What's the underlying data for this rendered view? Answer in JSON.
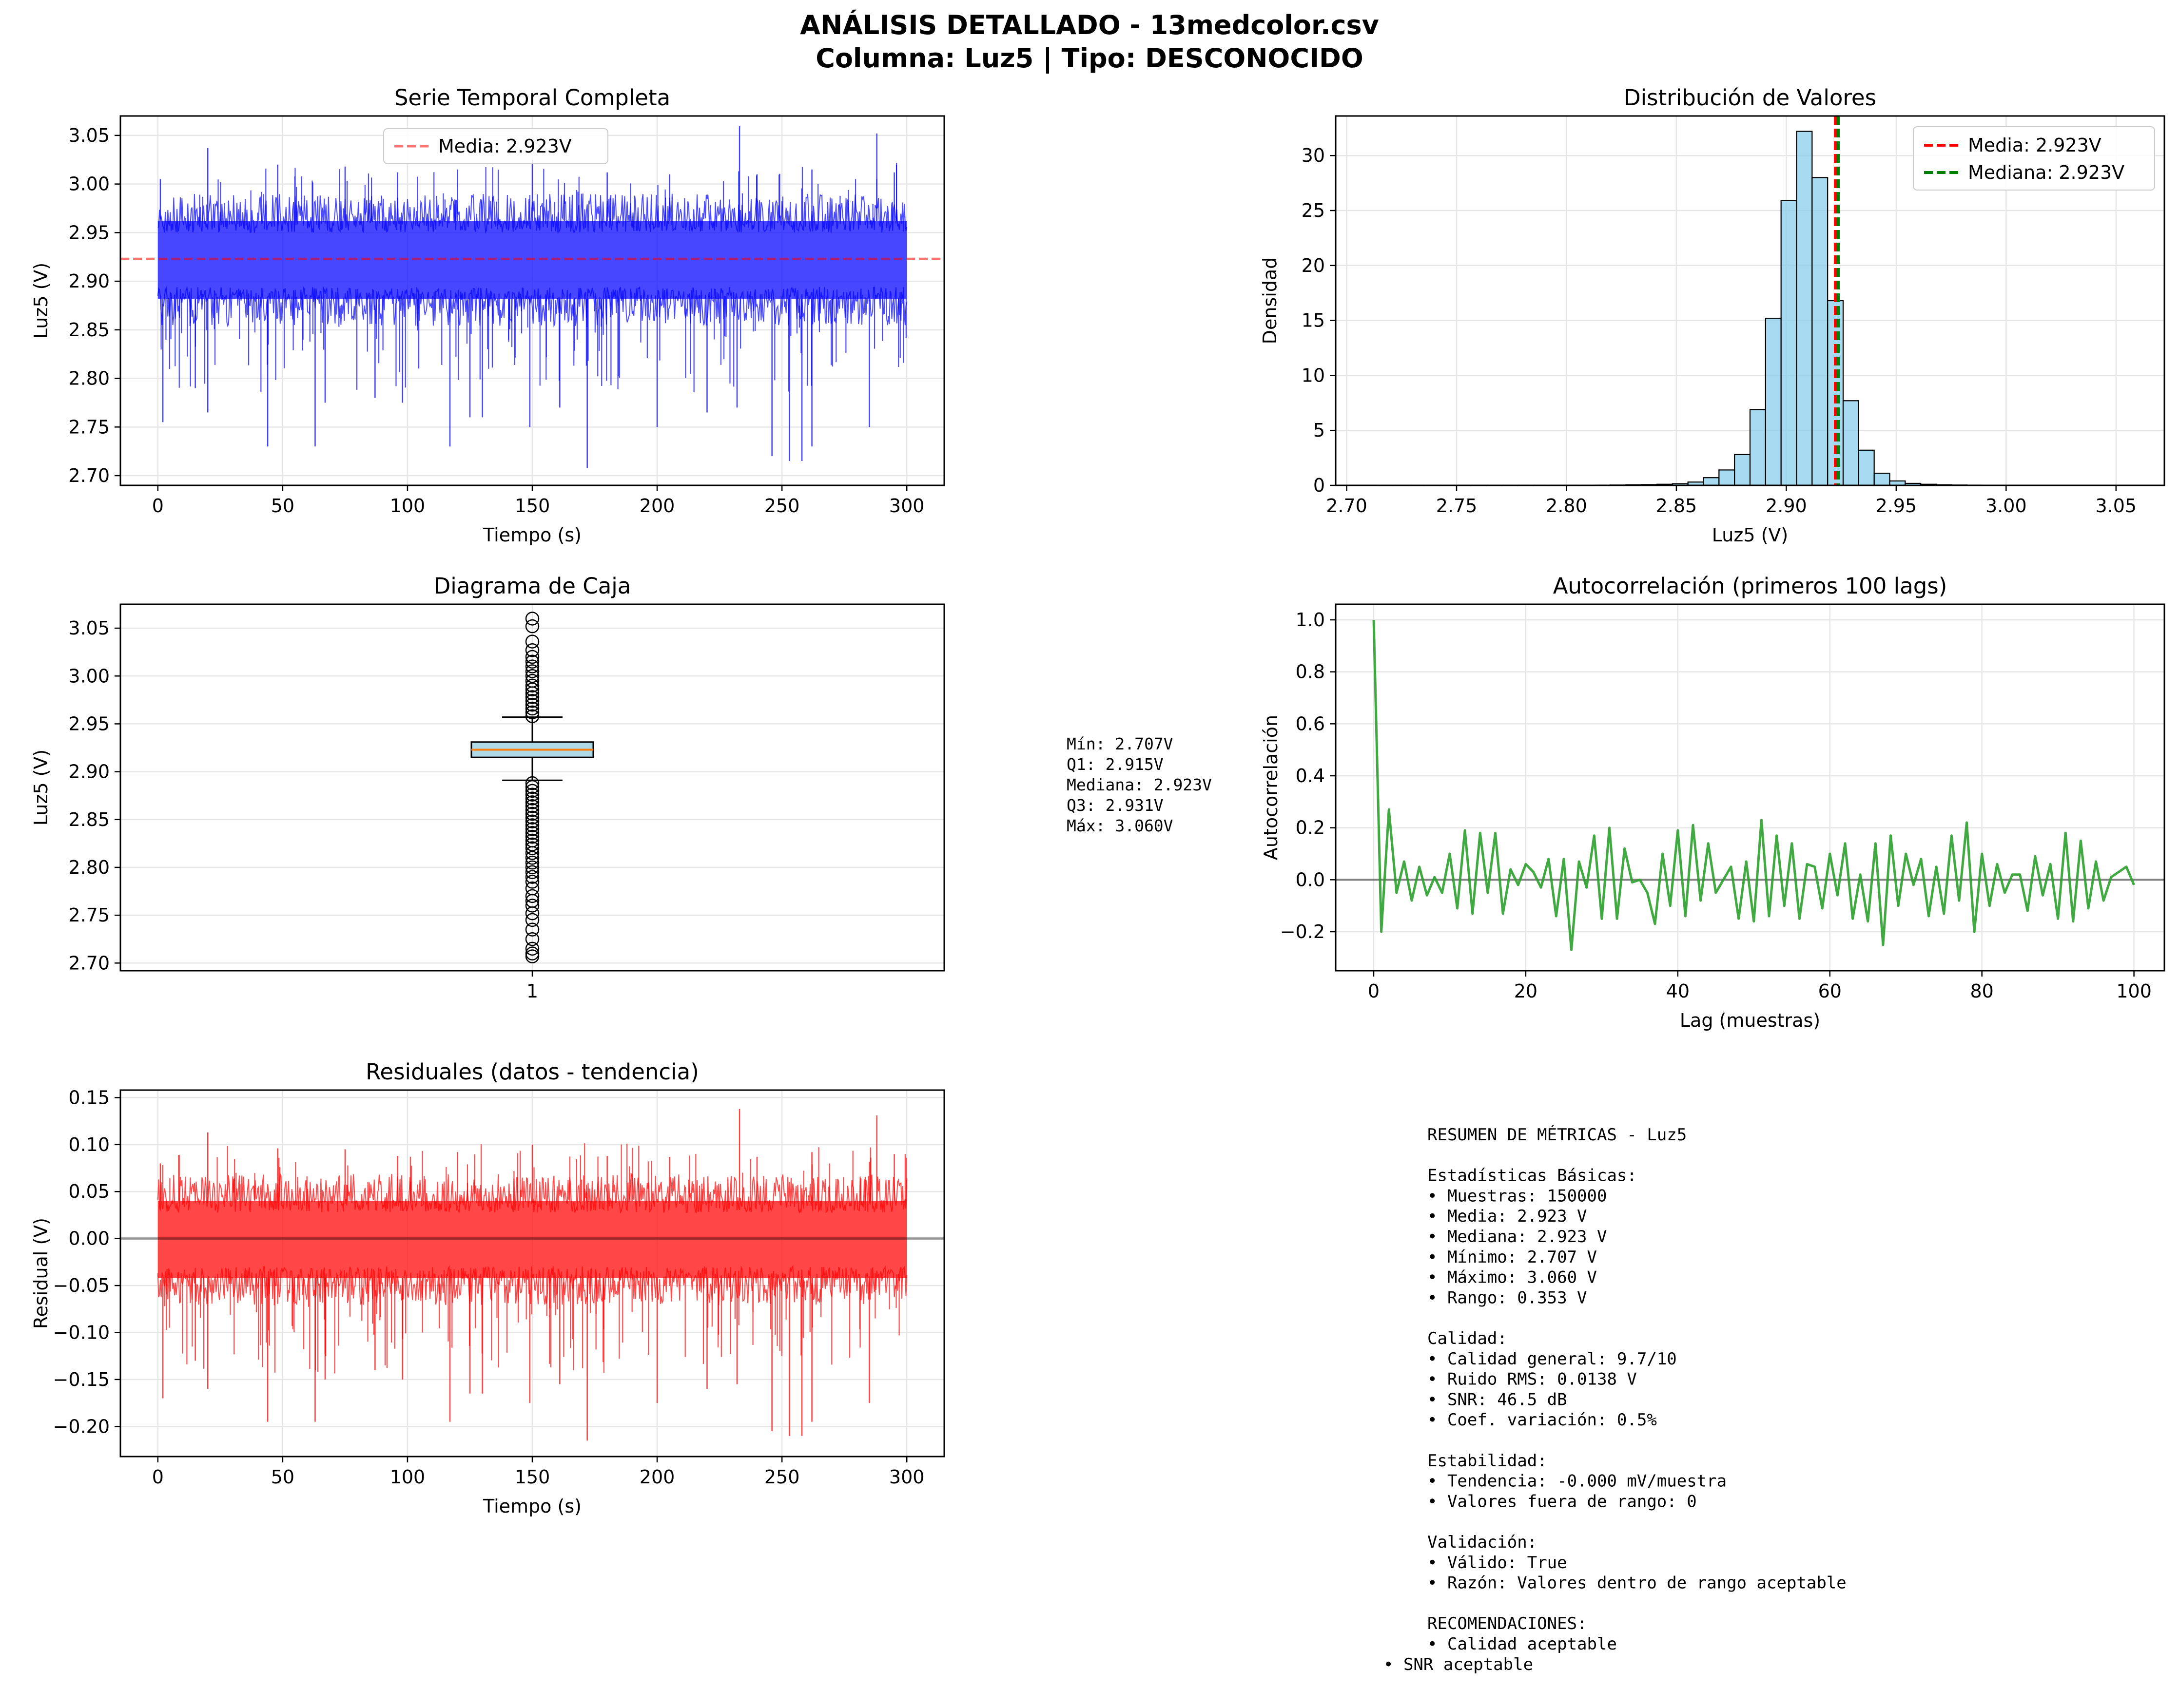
{
  "figure": {
    "title_line1": "ANÁLISIS DETALLADO - 13medcolor.csv",
    "title_line2": "Columna: Luz5 | Tipo: DESCONOCIDO"
  },
  "colors": {
    "series_blue": "#0000ff",
    "series_red": "#ff0000",
    "acf_green": "#2ca02c",
    "hist_fill": "#87ceeb",
    "median_line": "#ff7f0e",
    "mean_line": "#ff0000",
    "median_vline": "#008000",
    "grid": "#e6e6e6"
  },
  "chart_data": [
    {
      "id": "series",
      "type": "line",
      "title": "Serie Temporal Completa",
      "xlabel": "Tiempo (s)",
      "ylabel": "Luz5 (V)",
      "xlim": [
        -15,
        315
      ],
      "ylim": [
        2.69,
        3.07
      ],
      "xticks": [
        0,
        50,
        100,
        150,
        200,
        250,
        300
      ],
      "yticks": [
        2.7,
        2.75,
        2.8,
        2.85,
        2.9,
        2.95,
        3.0,
        3.05
      ],
      "ytick_labels": [
        "2.70",
        "2.75",
        "2.80",
        "2.85",
        "2.90",
        "2.95",
        "3.00",
        "3.05"
      ],
      "band": {
        "low": 2.882,
        "high": 2.962
      },
      "x_range": [
        0,
        300
      ],
      "mean": 2.923,
      "legend": {
        "position": "top-center",
        "entries": [
          "Media: 2.923V"
        ]
      },
      "spikes_up": [
        [
          1,
          3.005
        ],
        [
          20,
          3.037
        ],
        [
          48,
          3.02
        ],
        [
          75,
          3.018
        ],
        [
          96,
          3.012
        ],
        [
          120,
          3.015
        ],
        [
          150,
          3.025
        ],
        [
          180,
          3.012
        ],
        [
          205,
          3.01
        ],
        [
          233,
          3.06
        ],
        [
          240,
          3.01
        ],
        [
          262,
          3.015
        ],
        [
          288,
          3.052
        ],
        [
          295,
          3.012
        ]
      ],
      "spikes_down": [
        [
          2,
          2.755
        ],
        [
          15,
          2.79
        ],
        [
          20,
          2.765
        ],
        [
          44,
          2.73
        ],
        [
          63,
          2.73
        ],
        [
          67,
          2.775
        ],
        [
          87,
          2.78
        ],
        [
          98,
          2.775
        ],
        [
          117,
          2.73
        ],
        [
          125,
          2.76
        ],
        [
          130,
          2.76
        ],
        [
          149,
          2.75
        ],
        [
          161,
          2.77
        ],
        [
          172,
          2.708
        ],
        [
          200,
          2.75
        ],
        [
          220,
          2.765
        ],
        [
          232,
          2.77
        ],
        [
          246,
          2.72
        ],
        [
          253,
          2.715
        ],
        [
          258,
          2.715
        ],
        [
          262,
          2.73
        ],
        [
          285,
          2.75
        ]
      ],
      "grid": true
    },
    {
      "id": "hist",
      "type": "bar",
      "title": "Distribución de Valores",
      "xlabel": "Luz5 (V)",
      "ylabel": "Densidad",
      "xlim": [
        2.695,
        3.072
      ],
      "ylim": [
        0,
        33.6
      ],
      "xticks": [
        2.7,
        2.75,
        2.8,
        2.85,
        2.9,
        2.95,
        3.0,
        3.05
      ],
      "xtick_labels": [
        "2.70",
        "2.75",
        "2.80",
        "2.85",
        "2.90",
        "2.95",
        "3.00",
        "3.05"
      ],
      "yticks": [
        0,
        5,
        10,
        15,
        20,
        25,
        30
      ],
      "bin_start": 2.707,
      "bin_width": 0.00706,
      "values": [
        0.01,
        0,
        0,
        0,
        0,
        0,
        0,
        0,
        0,
        0,
        0,
        0,
        0,
        0,
        0,
        0.02,
        0.03,
        0.05,
        0.07,
        0.1,
        0.15,
        0.3,
        0.7,
        1.4,
        2.8,
        6.9,
        15.2,
        25.9,
        32.2,
        28.0,
        16.8,
        7.7,
        3.2,
        1.1,
        0.4,
        0.18,
        0.1,
        0.05,
        0.03,
        0.02,
        0.01,
        0.01,
        0.01,
        0.01,
        0.01,
        0.01,
        0.01,
        0.01,
        0.01,
        0.01
      ],
      "mean": 2.923,
      "median": 2.923,
      "legend": {
        "position": "top-right",
        "entries": [
          "Media: 2.923V",
          "Mediana: 2.923V"
        ]
      },
      "grid": true
    },
    {
      "id": "box",
      "type": "box",
      "title": "Diagrama de Caja",
      "ylabel": "Luz5 (V)",
      "ylim": [
        2.692,
        3.075
      ],
      "yticks": [
        2.7,
        2.75,
        2.8,
        2.85,
        2.9,
        2.95,
        3.0,
        3.05
      ],
      "ytick_labels": [
        "2.70",
        "2.75",
        "2.80",
        "2.85",
        "2.90",
        "2.95",
        "3.00",
        "3.05"
      ],
      "xtick_labels": [
        "1"
      ],
      "q1": 2.915,
      "median": 2.923,
      "q3": 2.931,
      "whisker_low": 2.891,
      "whisker_high": 2.957,
      "fliers_high": [
        2.958,
        2.962,
        2.966,
        2.97,
        2.974,
        2.978,
        2.982,
        2.986,
        2.99,
        2.995,
        3.0,
        3.005,
        3.01,
        3.015,
        3.02,
        3.027,
        3.036,
        3.052,
        3.06
      ],
      "fliers_low": [
        2.888,
        2.884,
        2.88,
        2.876,
        2.872,
        2.868,
        2.864,
        2.86,
        2.856,
        2.852,
        2.848,
        2.844,
        2.84,
        2.836,
        2.832,
        2.828,
        2.824,
        2.82,
        2.815,
        2.81,
        2.805,
        2.8,
        2.795,
        2.79,
        2.785,
        2.778,
        2.77,
        2.765,
        2.76,
        2.752,
        2.745,
        2.735,
        2.725,
        2.715,
        2.71,
        2.707
      ],
      "grid": true
    },
    {
      "id": "acf",
      "type": "line",
      "title": "Autocorrelación (primeros 100 lags)",
      "xlabel": "Lag (muestras)",
      "ylabel": "Autocorrelación",
      "xlim": [
        -5,
        104
      ],
      "ylim": [
        -0.35,
        1.06
      ],
      "xticks": [
        0,
        20,
        40,
        60,
        80,
        100
      ],
      "yticks": [
        -0.2,
        0.0,
        0.2,
        0.4,
        0.6,
        0.8,
        1.0
      ],
      "ytick_labels": [
        "−0.2",
        "0.0",
        "0.2",
        "0.4",
        "0.6",
        "0.8",
        "1.0"
      ],
      "values": [
        1.0,
        -0.2,
        0.27,
        -0.05,
        0.07,
        -0.08,
        0.05,
        -0.06,
        0.01,
        -0.05,
        0.1,
        -0.11,
        0.19,
        -0.13,
        0.18,
        -0.05,
        0.18,
        -0.13,
        0.04,
        -0.02,
        0.06,
        0.03,
        -0.03,
        0.08,
        -0.14,
        0.08,
        -0.27,
        0.07,
        -0.03,
        0.17,
        -0.15,
        0.2,
        -0.15,
        0.12,
        -0.01,
        0.0,
        -0.05,
        -0.17,
        0.1,
        -0.1,
        0.19,
        -0.14,
        0.21,
        -0.08,
        0.14,
        -0.05,
        0.0,
        0.05,
        -0.15,
        0.07,
        -0.16,
        0.23,
        -0.14,
        0.17,
        -0.1,
        0.14,
        -0.15,
        0.06,
        0.05,
        -0.11,
        0.1,
        -0.06,
        0.14,
        -0.15,
        0.02,
        -0.16,
        0.14,
        -0.25,
        0.17,
        -0.1,
        0.1,
        -0.02,
        0.08,
        -0.14,
        0.05,
        -0.13,
        0.17,
        -0.08,
        0.22,
        -0.2,
        0.1,
        -0.1,
        0.06,
        -0.05,
        0.02,
        0.02,
        -0.12,
        0.09,
        -0.06,
        0.06,
        -0.15,
        0.18,
        -0.16,
        0.15,
        -0.11,
        0.07,
        -0.08,
        0.01,
        0.03,
        0.05,
        -0.02
      ],
      "grid": true
    },
    {
      "id": "resid",
      "type": "line",
      "title": "Residuales (datos - tendencia)",
      "xlabel": "Tiempo (s)",
      "ylabel": "Residual (V)",
      "xlim": [
        -15,
        315
      ],
      "ylim": [
        -0.232,
        0.158
      ],
      "xticks": [
        0,
        50,
        100,
        150,
        200,
        250,
        300
      ],
      "yticks": [
        -0.2,
        -0.15,
        -0.1,
        -0.05,
        0.0,
        0.05,
        0.1,
        0.15
      ],
      "ytick_labels": [
        "−0.20",
        "−0.15",
        "−0.10",
        "−0.05",
        "0.00",
        "0.05",
        "0.10",
        "0.15"
      ],
      "band": {
        "low": -0.042,
        "high": 0.04
      },
      "x_range": [
        0,
        300
      ],
      "spikes_up": [
        [
          1,
          0.08
        ],
        [
          20,
          0.113
        ],
        [
          48,
          0.096
        ],
        [
          75,
          0.095
        ],
        [
          96,
          0.088
        ],
        [
          120,
          0.092
        ],
        [
          150,
          0.1
        ],
        [
          180,
          0.088
        ],
        [
          205,
          0.087
        ],
        [
          233,
          0.138
        ],
        [
          240,
          0.087
        ],
        [
          262,
          0.092
        ],
        [
          288,
          0.131
        ],
        [
          295,
          0.09
        ]
      ],
      "spikes_down": [
        [
          2,
          -0.17
        ],
        [
          15,
          -0.13
        ],
        [
          20,
          -0.16
        ],
        [
          44,
          -0.195
        ],
        [
          63,
          -0.195
        ],
        [
          67,
          -0.15
        ],
        [
          87,
          -0.14
        ],
        [
          98,
          -0.15
        ],
        [
          117,
          -0.195
        ],
        [
          125,
          -0.165
        ],
        [
          130,
          -0.165
        ],
        [
          149,
          -0.175
        ],
        [
          161,
          -0.155
        ],
        [
          172,
          -0.215
        ],
        [
          200,
          -0.175
        ],
        [
          220,
          -0.16
        ],
        [
          232,
          -0.155
        ],
        [
          246,
          -0.205
        ],
        [
          253,
          -0.21
        ],
        [
          258,
          -0.21
        ],
        [
          262,
          -0.195
        ],
        [
          285,
          -0.175
        ]
      ],
      "grid": true
    }
  ],
  "box_stats": {
    "lines": [
      "Mín: 2.707V",
      "Q1: 2.915V",
      "Mediana: 2.923V",
      "Q3: 2.931V",
      "Máx: 3.060V"
    ]
  },
  "summary": {
    "lines": [
      "RESUMEN DE MÉTRICAS - Luz5",
      "",
      "Estadísticas Básicas:",
      "• Muestras: 150000",
      "• Media: 2.923 V",
      "• Mediana: 2.923 V",
      "• Mínimo: 2.707 V",
      "• Máximo: 3.060 V",
      "• Rango: 0.353 V",
      "",
      "Calidad:",
      "• Calidad general: 9.7/10",
      "• Ruido RMS: 0.0138 V",
      "• SNR: 46.5 dB",
      "• Coef. variación: 0.5%",
      "",
      "Estabilidad:",
      "• Tendencia: -0.000 mV/muestra",
      "• Valores fuera de rango: 0",
      "",
      "Validación:",
      "• Válido: True",
      "• Razón: Valores dentro de rango aceptable",
      "",
      "RECOMENDACIONES:",
      "• Calidad aceptable"
    ],
    "last_line": "• SNR aceptable"
  }
}
